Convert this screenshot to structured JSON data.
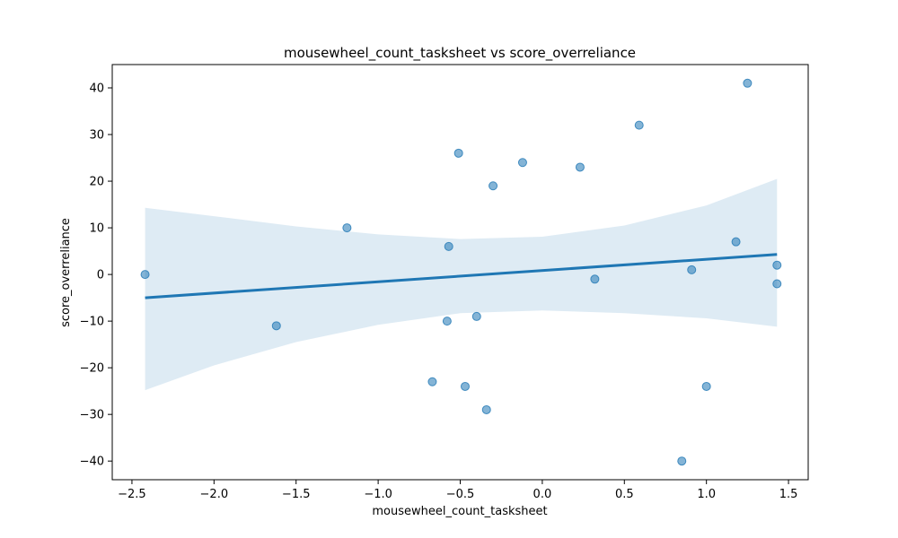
{
  "chart_data": {
    "type": "scatter",
    "title": "mousewheel_count_tasksheet vs score_overreliance",
    "xlabel": "mousewheel_count_tasksheet",
    "ylabel": "score_overreliance",
    "xlim": [
      -2.62,
      1.62
    ],
    "ylim": [
      -44,
      45
    ],
    "xticks": [
      -2.5,
      -2.0,
      -1.5,
      -1.0,
      -0.5,
      0.0,
      0.5,
      1.0,
      1.5
    ],
    "xtick_labels": [
      "−2.5",
      "−2.0",
      "−1.5",
      "−1.0",
      "−0.5",
      "0.0",
      "0.5",
      "1.0",
      "1.5"
    ],
    "yticks": [
      -40,
      -30,
      -20,
      -10,
      0,
      10,
      20,
      30,
      40
    ],
    "ytick_labels": [
      "−40",
      "−30",
      "−20",
      "−10",
      "0",
      "10",
      "20",
      "30",
      "40"
    ],
    "grid": false,
    "point_color": "#1f77b4",
    "points": [
      {
        "x": -2.42,
        "y": 0
      },
      {
        "x": -1.62,
        "y": -11
      },
      {
        "x": -1.19,
        "y": 10
      },
      {
        "x": -0.67,
        "y": -23
      },
      {
        "x": -0.58,
        "y": -10
      },
      {
        "x": -0.57,
        "y": 6
      },
      {
        "x": -0.51,
        "y": 26
      },
      {
        "x": -0.47,
        "y": -24
      },
      {
        "x": -0.4,
        "y": -9
      },
      {
        "x": -0.34,
        "y": -29
      },
      {
        "x": -0.3,
        "y": 19
      },
      {
        "x": -0.12,
        "y": 24
      },
      {
        "x": 0.23,
        "y": 23
      },
      {
        "x": 0.32,
        "y": -1
      },
      {
        "x": 0.59,
        "y": 32
      },
      {
        "x": 0.85,
        "y": -40
      },
      {
        "x": 0.91,
        "y": 1
      },
      {
        "x": 1.0,
        "y": -24
      },
      {
        "x": 1.18,
        "y": 7
      },
      {
        "x": 1.25,
        "y": 41
      },
      {
        "x": 1.43,
        "y": 2
      },
      {
        "x": 1.43,
        "y": -2
      }
    ],
    "regression": {
      "color": "#1f77b4",
      "line": [
        {
          "x": -2.42,
          "y": -5
        },
        {
          "x": 1.43,
          "y": 4.3
        }
      ],
      "ci_color": "#1f77b4",
      "ci_upper": [
        {
          "x": -2.42,
          "y": 14.3
        },
        {
          "x": -2.0,
          "y": 12.5
        },
        {
          "x": -1.5,
          "y": 10.3
        },
        {
          "x": -1.0,
          "y": 8.6
        },
        {
          "x": -0.5,
          "y": 7.6
        },
        {
          "x": 0.0,
          "y": 8.1
        },
        {
          "x": 0.5,
          "y": 10.5
        },
        {
          "x": 1.0,
          "y": 14.8
        },
        {
          "x": 1.43,
          "y": 20.5
        }
      ],
      "ci_lower": [
        {
          "x": -2.42,
          "y": -24.8
        },
        {
          "x": -2.0,
          "y": -19.5
        },
        {
          "x": -1.5,
          "y": -14.5
        },
        {
          "x": -1.0,
          "y": -10.8
        },
        {
          "x": -0.5,
          "y": -8.3
        },
        {
          "x": 0.0,
          "y": -7.7
        },
        {
          "x": 0.5,
          "y": -8.3
        },
        {
          "x": 1.0,
          "y": -9.4
        },
        {
          "x": 1.43,
          "y": -11.2
        }
      ]
    }
  }
}
